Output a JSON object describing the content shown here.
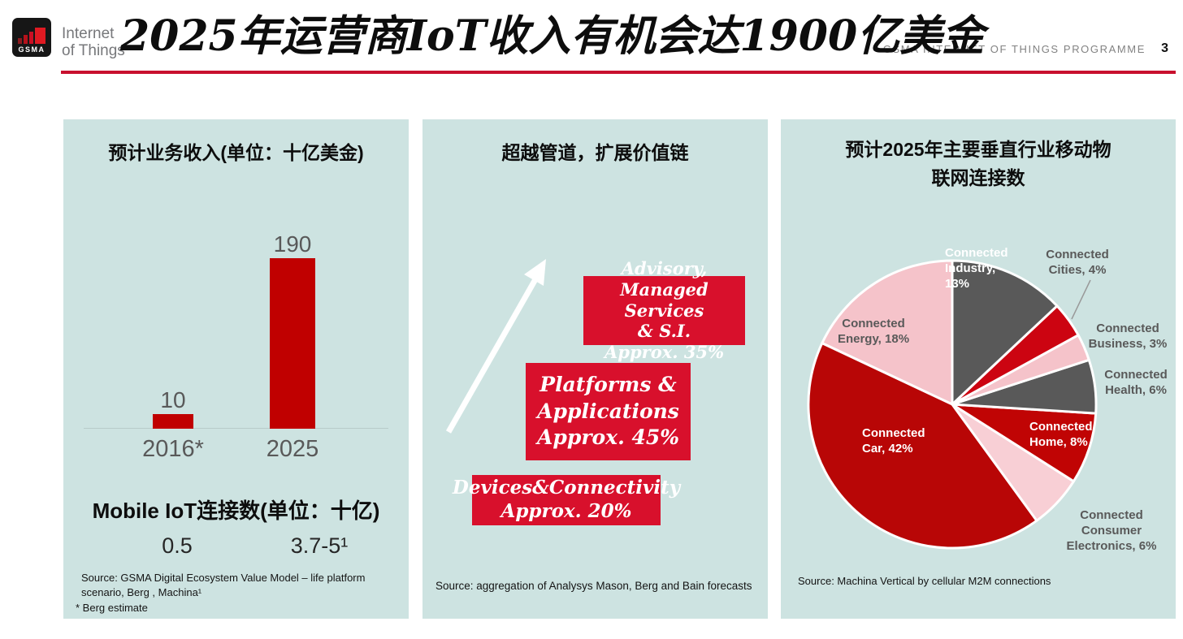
{
  "header": {
    "logo_gsma": "GSMA",
    "logo_text": "Internet\nof Things",
    "title": "2025年运营商IoT收入有机会达1900亿美金",
    "programme_label": "GSMA INTERNET OF THINGS PROGRAMME",
    "page_number": "3"
  },
  "colors": {
    "accent_red": "#c8102e",
    "panel_background": "#cde3e1",
    "bar_red": "#c00000",
    "value_box_red": "#d8102c"
  },
  "panels": {
    "revenue": {
      "title": "预计业务收入(单位：十亿美金)",
      "connections_title": "Mobile IoT连接数(单位：十亿)",
      "connections_values": [
        "0.5",
        "3.7-5¹"
      ],
      "source": "Source: GSMA Digital Ecosystem Value Model – life platform\nscenario, Berg , Machina¹",
      "source_note": "* Berg estimate"
    },
    "value_chain": {
      "title": "超越管道，扩展价值链",
      "boxes": [
        {
          "text": "Advisory,\nManaged Services\n& S.I.\nApprox. 35%"
        },
        {
          "text": "Platforms &\nApplications\nApprox. 45%"
        },
        {
          "text": "Devices&Connectivity\nApprox. 20%"
        }
      ],
      "source": "Source: aggregation of Analysys Mason, Berg and Bain forecasts"
    },
    "verticals": {
      "title": "预计2025年主要垂直行业移动物\n联网连接数",
      "source": "Source: Machina Vertical by cellular M2M connections"
    }
  },
  "chart_data": [
    {
      "type": "bar",
      "title": "预计业务收入(单位：十亿美金)",
      "categories": [
        "2016*",
        "2025"
      ],
      "values": [
        10,
        190
      ],
      "xlabel": "",
      "ylabel": "十亿美金",
      "ylim": [
        0,
        200
      ],
      "bar_color": "#c00000",
      "grid": false,
      "extra_series_note": {
        "name": "Mobile IoT连接数(单位：十亿)",
        "values_text": [
          "0.5",
          "3.7-5¹"
        ]
      }
    },
    {
      "type": "pie",
      "title": "预计2025年主要垂直行业移动物联网连接数",
      "legend_position": "labels-on-and-around-pie",
      "slices": [
        {
          "id": "industry",
          "label": "Connected Industry",
          "pct": 13,
          "color": "#595959",
          "label_text": "Connected\nIndustry,\n13%"
        },
        {
          "id": "cities",
          "label": "Connected Cities",
          "pct": 4,
          "color": "#cc0411",
          "label_text": "Connected\nCities, 4%"
        },
        {
          "id": "business",
          "label": "Connected Business",
          "pct": 3,
          "color": "#f5c3ca",
          "label_text": "Connected\nBusiness, 3%"
        },
        {
          "id": "health",
          "label": "Connected Health",
          "pct": 6,
          "color": "#595959",
          "label_text": "Connected\nHealth, 6%"
        },
        {
          "id": "home",
          "label": "Connected Home",
          "pct": 8,
          "color": "#c00404",
          "label_text": "Connected\nHome, 8%"
        },
        {
          "id": "ce",
          "label": "Connected Consumer Electronics",
          "pct": 6,
          "color": "#f8cfd5",
          "label_text": "Connected\nConsumer\nElectronics, 6%"
        },
        {
          "id": "car",
          "label": "Connected Car",
          "pct": 42,
          "color": "#b80606",
          "label_text": "Connected\nCar, 42%"
        },
        {
          "id": "energy",
          "label": "Connected Energy",
          "pct": 18,
          "color": "#f5c3ca",
          "label_text": "Connected\nEnergy, 18%"
        }
      ]
    }
  ]
}
